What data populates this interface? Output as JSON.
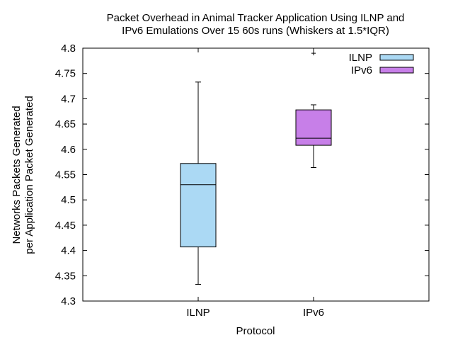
{
  "chart_data": {
    "type": "box",
    "title_lines": [
      "Packet Overhead in Animal Tracker Application Using ILNP and",
      "IPv6 Emulations Over 15 60s runs (Whiskers at 1.5*IQR)"
    ],
    "xlabel": "Protocol",
    "ylabel_lines": [
      "Networks Packets Generated",
      "per Application Packet Generated"
    ],
    "categories": [
      "ILNP",
      "IPv6"
    ],
    "ylim": [
      4.3,
      4.8
    ],
    "yticks": [
      "4.3",
      "4.35",
      "4.4",
      "4.45",
      "4.5",
      "4.55",
      "4.6",
      "4.65",
      "4.7",
      "4.75",
      "4.8"
    ],
    "grid": false,
    "legend_position": "top-right",
    "series": [
      {
        "name": "ILNP",
        "color": "#abd9f4",
        "whisker_low": 4.333,
        "q1": 4.407,
        "median": 4.53,
        "q3": 4.572,
        "whisker_high": 4.733,
        "outliers": []
      },
      {
        "name": "IPv6",
        "color": "#c77fe8",
        "whisker_low": 4.564,
        "q1": 4.608,
        "median": 4.622,
        "q3": 4.678,
        "whisker_high": 4.688,
        "outliers": [
          4.79
        ]
      }
    ]
  }
}
